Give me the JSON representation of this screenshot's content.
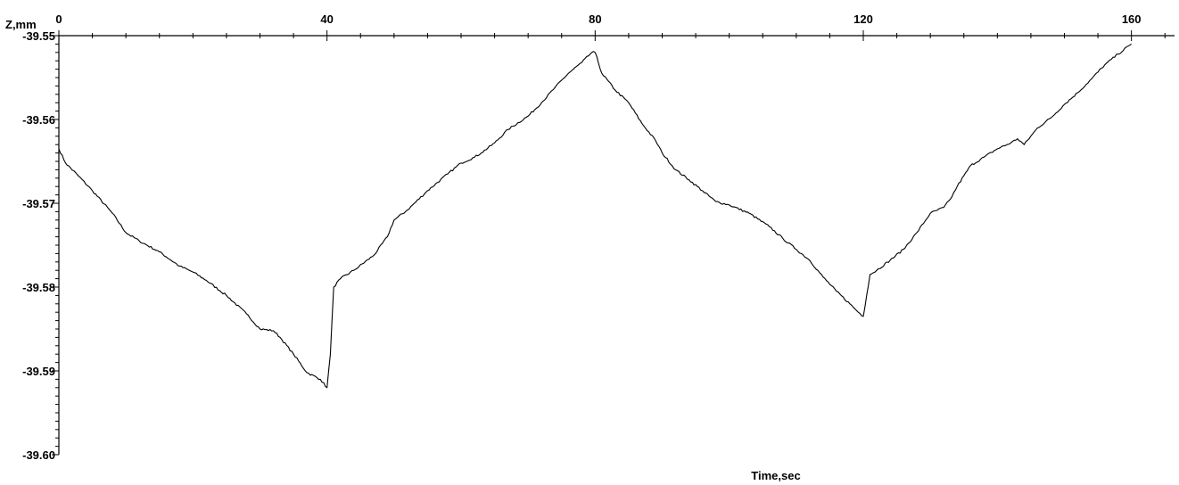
{
  "chart_data": {
    "type": "line",
    "title": "",
    "xlabel": "Time,sec",
    "ylabel": "Z,mm",
    "xlim": [
      0,
      166
    ],
    "ylim": [
      -39.6,
      -39.55
    ],
    "x_ticks": [
      {
        "value": 0,
        "label": "0"
      },
      {
        "value": 40,
        "label": "40"
      },
      {
        "value": 80,
        "label": "80"
      },
      {
        "value": 120,
        "label": "120"
      },
      {
        "value": 160,
        "label": "160"
      }
    ],
    "y_ticks": [
      {
        "value": -39.55,
        "label": "-39.55"
      },
      {
        "value": -39.56,
        "label": "-39.56"
      },
      {
        "value": -39.57,
        "label": "-39.57"
      },
      {
        "value": -39.58,
        "label": "-39.58"
      },
      {
        "value": -39.59,
        "label": "-39.59"
      },
      {
        "value": -39.6,
        "label": "-39.60"
      }
    ],
    "grid": false,
    "legend": "none",
    "line_color": "#000000",
    "series": [
      {
        "x": [
          0,
          1,
          3,
          5,
          8,
          10,
          12,
          15,
          18,
          20,
          22,
          25,
          28,
          30,
          32,
          33,
          35,
          37,
          39,
          40,
          40.5,
          41,
          42,
          44,
          47,
          49,
          50,
          52,
          55,
          58,
          60,
          62,
          63,
          65,
          67,
          70,
          72,
          74,
          76,
          78,
          79.5,
          80,
          81,
          83,
          85,
          87,
          89,
          90,
          92,
          94,
          96,
          98,
          100,
          103,
          106,
          108,
          110,
          112,
          114,
          116,
          118,
          119,
          120,
          120.5,
          121,
          122,
          124,
          126,
          128,
          130,
          132,
          133,
          134,
          136,
          138,
          140,
          142,
          143,
          144,
          146,
          148,
          150,
          152,
          154,
          156,
          158,
          160
        ],
        "y": [
          -39.5635,
          -39.5652,
          -39.5668,
          -39.5685,
          -39.5712,
          -39.5735,
          -39.5745,
          -39.5758,
          -39.5775,
          -39.5782,
          -39.5792,
          -39.581,
          -39.5832,
          -39.585,
          -39.5852,
          -39.586,
          -39.588,
          -39.5902,
          -39.591,
          -39.592,
          -39.588,
          -39.58,
          -39.579,
          -39.578,
          -39.5762,
          -39.574,
          -39.572,
          -39.5708,
          -39.5685,
          -39.5665,
          -39.5652,
          -39.5645,
          -39.564,
          -39.5628,
          -39.5612,
          -39.5596,
          -39.558,
          -39.5562,
          -39.5545,
          -39.5532,
          -39.552,
          -39.552,
          -39.5545,
          -39.5565,
          -39.558,
          -39.5605,
          -39.5625,
          -39.564,
          -39.566,
          -39.5672,
          -39.5685,
          -39.5698,
          -39.5702,
          -39.5712,
          -39.5728,
          -39.5742,
          -39.5755,
          -39.5768,
          -39.5788,
          -39.5805,
          -39.582,
          -39.5828,
          -39.5835,
          -39.581,
          -39.5785,
          -39.578,
          -39.5768,
          -39.5755,
          -39.5735,
          -39.5712,
          -39.5705,
          -39.5695,
          -39.568,
          -39.5655,
          -39.5645,
          -39.5635,
          -39.5628,
          -39.5623,
          -39.563,
          -39.561,
          -39.5598,
          -39.5582,
          -39.5568,
          -39.5552,
          -39.5535,
          -39.5522,
          -39.551
        ]
      }
    ]
  }
}
